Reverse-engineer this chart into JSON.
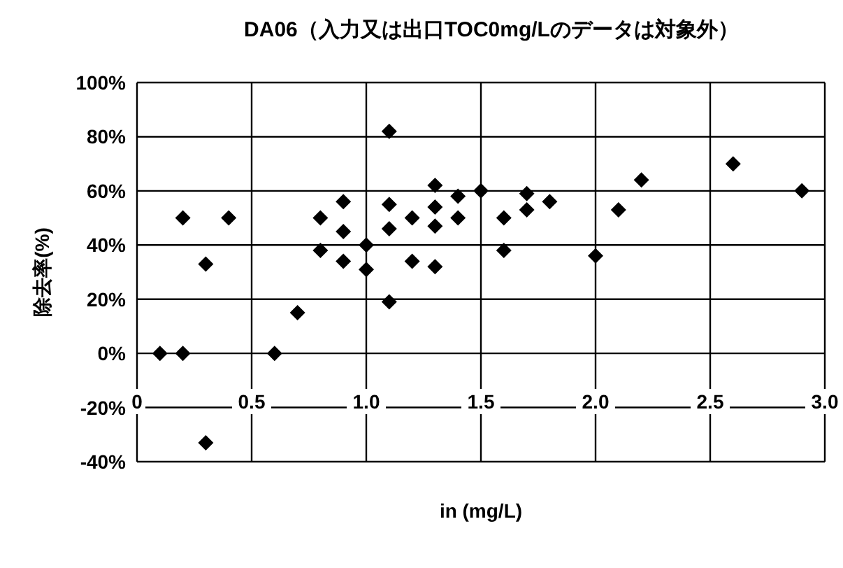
{
  "chart_data": {
    "type": "scatter",
    "title": "DA06（入力又は出口TOC0mg/Lのデータは対象外）",
    "xlabel": "in (mg/L)",
    "ylabel": "除去率(%)",
    "x": [
      0.1,
      0.2,
      0.2,
      0.3,
      0.3,
      0.4,
      0.6,
      0.7,
      0.8,
      0.8,
      0.9,
      0.9,
      0.9,
      1.0,
      1.0,
      1.1,
      1.1,
      1.1,
      1.1,
      1.2,
      1.2,
      1.3,
      1.3,
      1.3,
      1.3,
      1.4,
      1.4,
      1.5,
      1.6,
      1.6,
      1.7,
      1.7,
      1.8,
      2.0,
      2.1,
      2.2,
      2.6,
      2.9
    ],
    "values": [
      0,
      0,
      50,
      33,
      -33,
      50,
      0,
      15,
      50,
      38,
      56,
      45,
      34,
      40,
      31,
      82,
      55,
      46,
      19,
      50,
      34,
      62,
      54,
      47,
      32,
      58,
      50,
      60,
      50,
      38,
      59,
      53,
      56,
      36,
      53,
      64,
      70,
      60
    ],
    "color": "#000000",
    "marker": "diamond",
    "grid": true,
    "legend": false,
    "xlim": [
      0,
      3
    ],
    "xticks": [
      0,
      {
        "value": 0.5,
        "label": "0.5"
      },
      {
        "value": 1,
        "label": "1.0"
      },
      {
        "value": 1.5,
        "label": "1.5"
      },
      {
        "value": 2,
        "label": "2.0"
      },
      {
        "value": 2.5,
        "label": "2.5"
      },
      {
        "value": 3,
        "label": "3.0"
      }
    ],
    "ylim": [
      -40,
      100
    ],
    "yticks": [
      {
        "value": -40,
        "label": "-40%"
      },
      {
        "value": -20,
        "label": "-20%"
      },
      {
        "value": 0,
        "label": "0%"
      },
      {
        "value": 20,
        "label": "20%"
      },
      {
        "value": 40,
        "label": "40%"
      },
      {
        "value": 60,
        "label": "60%"
      },
      {
        "value": 80,
        "label": "80%"
      },
      {
        "value": 100,
        "label": "100%"
      }
    ]
  }
}
